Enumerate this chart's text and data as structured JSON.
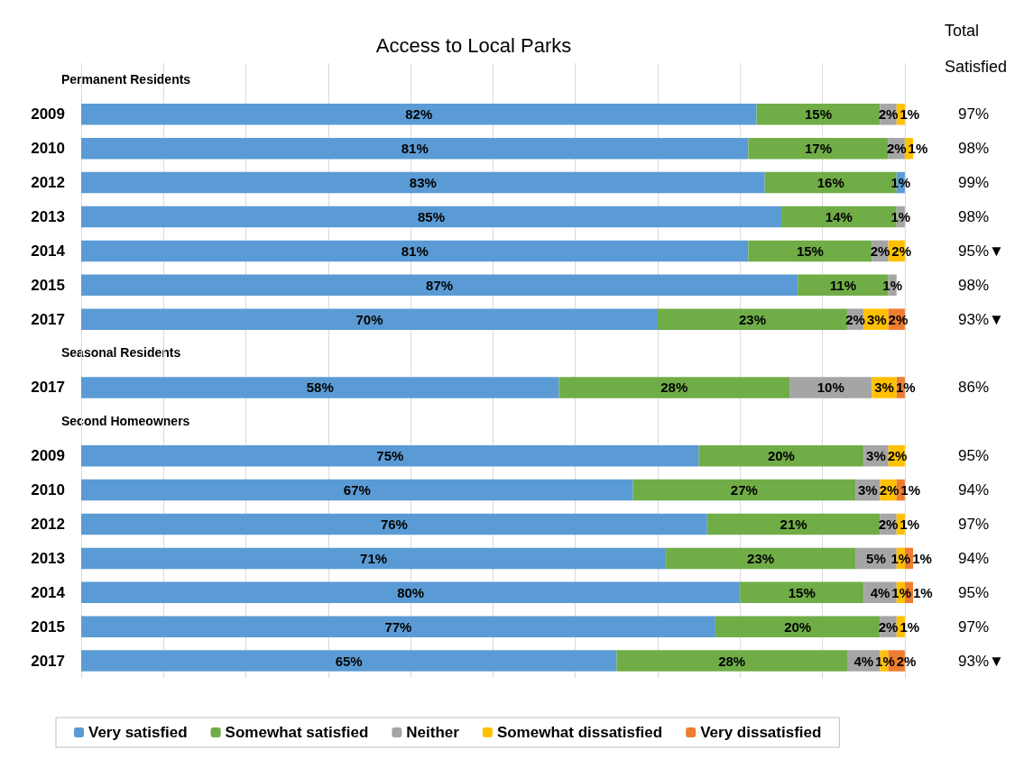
{
  "chart_data": {
    "type": "bar",
    "orientation": "horizontal",
    "stacked": true,
    "title": "Access to Local Parks",
    "y2label": "Total Satisfied",
    "categories": [
      null,
      "2009",
      "2010",
      "2012",
      "2013",
      "2014",
      "2015",
      "2017",
      null,
      "2017",
      null,
      "2009",
      "2010",
      "2012",
      "2013",
      "2014",
      "2015",
      "2017"
    ],
    "annotations": [
      "Permanent Residents",
      "Seasonal Residents",
      "Second Homeowners"
    ],
    "y2_categories": [
      null,
      "97%",
      "98%",
      "99%",
      "98%",
      "95%▼",
      "98%",
      "93%▼",
      null,
      "86%",
      null,
      "95%",
      "94%",
      "97%",
      "94%",
      "95%",
      "97%",
      "93%▼"
    ],
    "xlim": [
      0,
      101
    ],
    "xticks": [
      {
        "value": 0,
        "label": null
      },
      {
        "value": 10,
        "label": null
      },
      {
        "value": 20,
        "label": null
      },
      {
        "value": 30,
        "label": null
      },
      {
        "value": 40,
        "label": null
      },
      {
        "value": 50,
        "label": null
      },
      {
        "value": 60,
        "label": null
      },
      {
        "value": 70,
        "label": null
      },
      {
        "value": 80,
        "label": null
      },
      {
        "value": 90,
        "label": null
      },
      {
        "value": 100,
        "label": null
      }
    ],
    "grid": "x",
    "legend": "bottom",
    "series": [
      {
        "name": "Very satisfied",
        "color": "#5b9bd5",
        "values": [
          null,
          82,
          81,
          83,
          85,
          81,
          87,
          70,
          null,
          58,
          null,
          75,
          67,
          76,
          71,
          80,
          77,
          65
        ],
        "value_labels": [
          null,
          "82%",
          "81%",
          "83%",
          "85%",
          "81%",
          "87%",
          "70%",
          null,
          "58%",
          null,
          "75%",
          "67%",
          "76%",
          "71%",
          "80%",
          "77%",
          "65%"
        ]
      },
      {
        "name": "Somewhat satisfied",
        "color": "#70ad47",
        "values": [
          null,
          15,
          17,
          16,
          14,
          15,
          11,
          23,
          null,
          28,
          null,
          20,
          27,
          21,
          23,
          15,
          20,
          28
        ],
        "value_labels": [
          null,
          "15%",
          "17%",
          "16%",
          "14%",
          "15%",
          "11%",
          "23%",
          null,
          "28%",
          null,
          "20%",
          "27%",
          "21%",
          "23%",
          "15%",
          "20%",
          "28%"
        ]
      },
      {
        "name": "Neither",
        "color": "#a5a5a5",
        "colors": [
          null,
          "#a5a5a5",
          "#a5a5a5",
          "#5b9bd5",
          "#a5a5a5",
          "#a5a5a5",
          "#a5a5a5",
          "#a5a5a5",
          null,
          "#a5a5a5",
          null,
          "#a5a5a5",
          "#a5a5a5",
          "#a5a5a5",
          "#a5a5a5",
          "#a5a5a5",
          "#a5a5a5",
          "#a5a5a5"
        ],
        "values": [
          null,
          2,
          2,
          1,
          1,
          2,
          1,
          2,
          null,
          10,
          null,
          3,
          3,
          2,
          5,
          4,
          2,
          4
        ],
        "value_labels": [
          null,
          "2%",
          "2%",
          "1%",
          "1%",
          "2%",
          "1%",
          "2%",
          null,
          "10%",
          null,
          "3%",
          "3%",
          "2%",
          "5%",
          "4%",
          "2%",
          "4%"
        ]
      },
      {
        "name": "Somewhat dissatisfied",
        "color": "#ffc000",
        "values": [
          null,
          1,
          1,
          null,
          null,
          2,
          null,
          3,
          null,
          3,
          null,
          2,
          2,
          1,
          1,
          1,
          1,
          1
        ],
        "value_labels": [
          null,
          "1%",
          "1%",
          null,
          null,
          "2%",
          null,
          "3%",
          null,
          "3%",
          null,
          "2%",
          "2%",
          "1%",
          "1%",
          "1%",
          "1%",
          "1%"
        ]
      },
      {
        "name": "Very dissatisfied",
        "color": "#ed7d31",
        "values": [
          null,
          null,
          null,
          null,
          null,
          null,
          null,
          2,
          null,
          1,
          null,
          null,
          1,
          null,
          1,
          1,
          null,
          2
        ],
        "value_labels": [
          null,
          null,
          null,
          null,
          null,
          null,
          null,
          "2%",
          null,
          "1%",
          null,
          null,
          "1%",
          null,
          "1%",
          "1%",
          null,
          "2%"
        ]
      }
    ]
  }
}
